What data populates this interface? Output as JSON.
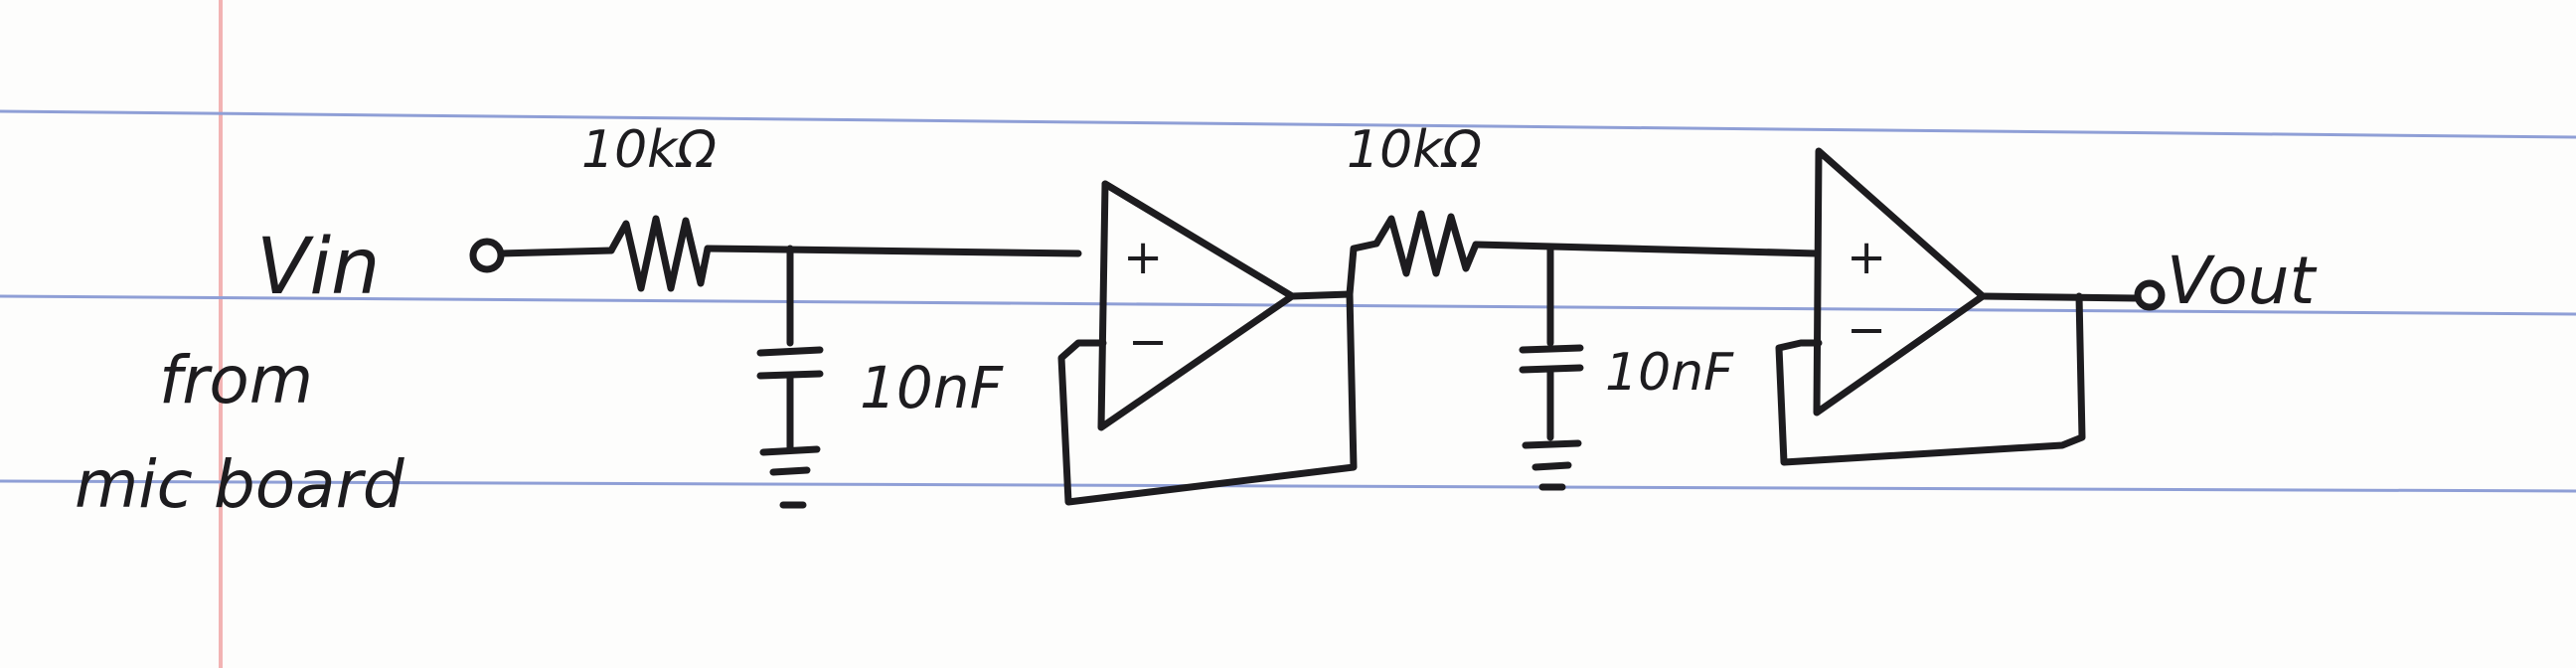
{
  "labels": {
    "r1": "10kΩ",
    "r2": "10kΩ",
    "c1": "10nF",
    "c2": "10nF",
    "vin": "Vin",
    "vout": "Vout",
    "source_line1": "from",
    "source_line2": "mic board",
    "opamp1_plus": "+",
    "opamp1_minus": "−",
    "opamp2_plus": "+",
    "opamp2_minus": "−"
  },
  "colors": {
    "ink": "#1d1c1f",
    "paper": "#fdfdfc",
    "rule_lines": "#8f9fd6",
    "margin_line": "#f2b3b3"
  }
}
